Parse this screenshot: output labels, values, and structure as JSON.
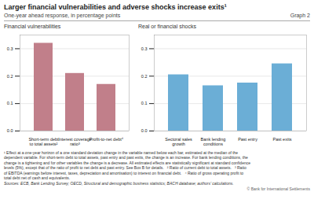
{
  "title": "Larger financial vulnerabilities and adverse shocks increase exits¹",
  "subtitle": "One-year ahead response, in percentage points",
  "annotations": [
    "Graph 2",
    "¹ Effect at a one-year horizon of a one standard deviation change in the variable named below each bar, estimated at the median of the\ndependent variable. For short-term debt to total assets, past entry and past exits, the change is an increase. For bank lending conditions, the\nchange is a tightening and for other variables the change is a decrease. All estimated effects are statistically significant at standard confidence\nlevels (5%), except that of the ratio of profit to net debt and past entry. See Box B for details.   ² Ratio of current debt to total assets.   ³ Ratio\nof EBITDA (earnings before interest, taxes, depreciation and amortisation) to interest on financial debt.   ⁴ Ratio of gross operating profit to\ntotal debt net of cash and equivalents.",
    "Sources: ECB, Bank Lending Survey; OECD, Structural and demographic business statistics; BACH database; authors’ calculations.",
    "© Bank for International Settlements"
  ],
  "chart_data": [
    {
      "type": "bar",
      "title": "Financial vulnerabilities",
      "categories": [
        "Short-term debt\nto total assets²",
        "Interest coverage\nratio³",
        "Profit-to-net debt⁴"
      ],
      "values": [
        0.32,
        0.21,
        0.17
      ],
      "color": "#c17f8a",
      "ylim": [
        0.0,
        0.35
      ],
      "yticks": [
        {
          "value": 0.0,
          "label": "0.0"
        },
        0.1,
        0.2,
        0.3
      ],
      "grid": true
    },
    {
      "type": "bar",
      "title": "Real or financial shocks",
      "categories": [
        "Sectoral sales\ngrowth",
        "Bank lending\nconditions",
        "Past entry",
        "Past exits"
      ],
      "values": [
        0.205,
        0.165,
        0.175,
        0.245
      ],
      "color": "#6baed6",
      "ylim": [
        0.0,
        0.35
      ],
      "yticks": [
        {
          "value": 0.0,
          "label": "0.0"
        },
        0.1,
        0.2,
        0.3
      ],
      "grid": true
    }
  ]
}
